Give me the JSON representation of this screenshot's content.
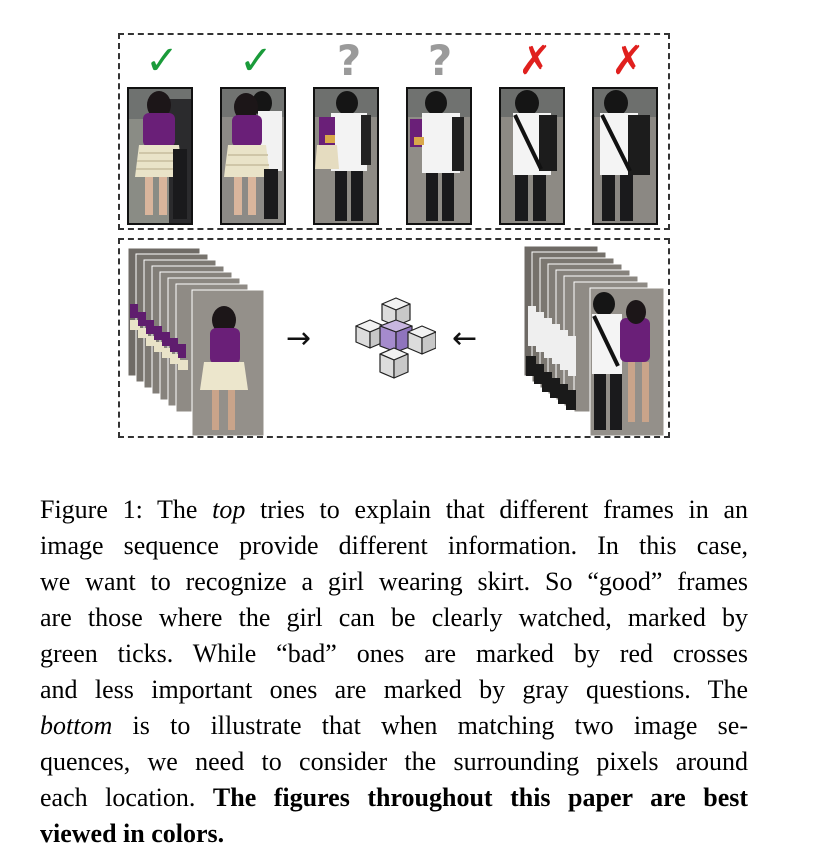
{
  "figure": {
    "top_markers": [
      {
        "type": "tick",
        "glyph": "✓",
        "icon": "green-tick-icon",
        "color": "#1a9b3a"
      },
      {
        "type": "tick",
        "glyph": "✓",
        "icon": "green-tick-icon",
        "color": "#1a9b3a"
      },
      {
        "type": "question",
        "glyph": "?",
        "icon": "gray-question-icon",
        "color": "#9a9a9a"
      },
      {
        "type": "question",
        "glyph": "?",
        "icon": "gray-question-icon",
        "color": "#9a9a9a"
      },
      {
        "type": "cross",
        "glyph": "✗",
        "icon": "red-cross-icon",
        "color": "#e0201e"
      },
      {
        "type": "cross",
        "glyph": "✗",
        "icon": "red-cross-icon",
        "color": "#e0201e"
      }
    ],
    "bottom": {
      "arrow_right": "→",
      "arrow_left": "←",
      "cube_highlight_color": "#9b7fc6"
    }
  },
  "caption": {
    "l1_a": "Figure 1: The ",
    "l1_b": "top",
    "l1_c": " tries to explain that different frames in an",
    "l2": "image sequence provide different information. In this case,",
    "l3": "we want to recognize a girl wearing skirt. So “good” frames",
    "l4": "are those where the girl can be clearly watched, marked by",
    "l5": "green ticks.  While “bad” ones are marked by red crosses",
    "l6": "and less important ones are marked by gray questions. The",
    "l7_a": "bottom",
    "l7_b": " is to illustrate that when matching two image se-",
    "l8": "quences, we need to consider the surrounding pixels around",
    "l9_a": "each location. ",
    "l9_b": "The figures throughout this paper are best",
    "l10": "viewed in colors."
  }
}
